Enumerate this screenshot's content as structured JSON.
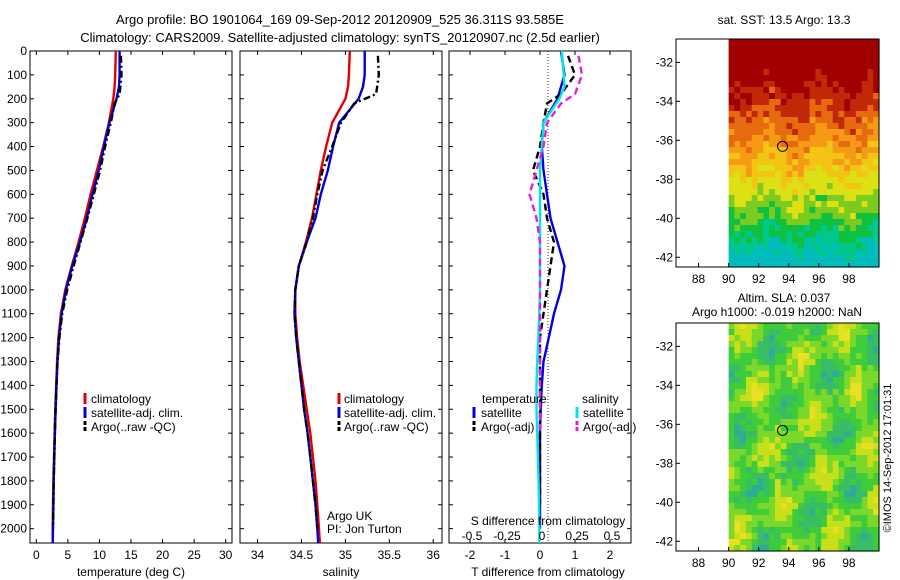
{
  "header": {
    "line1": "Argo profile: BO 1901064_169 09-Sep-2012 20120909_525 36.311S 93.585E",
    "line2": "Climatology: CARS2009. Satellite-adjusted climatology: synTS_20120907.nc (2.5d earlier)"
  },
  "colors": {
    "climatology": "#e00000",
    "satellite": "#0000dd",
    "argo": "#000000",
    "salinity_satellite": "#00e5e5",
    "salinity_argo": "#e020e0"
  },
  "chart_data": [
    {
      "type": "line",
      "xlabel": "temperature (deg C)",
      "ylabel": "",
      "xlim": [
        -1,
        31
      ],
      "xticks": [
        0,
        5,
        10,
        15,
        20,
        25,
        30
      ],
      "ylim": [
        2060,
        0
      ],
      "yticks": [
        0,
        100,
        200,
        300,
        400,
        500,
        600,
        700,
        800,
        900,
        1000,
        1100,
        1200,
        1300,
        1400,
        1500,
        1600,
        1700,
        1800,
        1900,
        2000
      ],
      "y_reversed": true,
      "legend": {
        "placement": "lower-right",
        "entries": [
          "climatology",
          "satellite-adj. clim.",
          "Argo(..raw -QC)"
        ]
      },
      "series": [
        {
          "name": "climatology",
          "color": "#e00000",
          "dash": "solid",
          "x": [
            12.6,
            12.5,
            12.4,
            12.2,
            11.5,
            10.6,
            9.6,
            8.6,
            7.7,
            6.7,
            5.6,
            4.6,
            3.9,
            3.5,
            3.3,
            3.15,
            3.0,
            2.9,
            2.8,
            2.7,
            2.65,
            2.6,
            2.6
          ],
          "y": [
            0,
            100,
            150,
            200,
            300,
            400,
            500,
            600,
            700,
            800,
            900,
            1000,
            1100,
            1200,
            1300,
            1400,
            1500,
            1600,
            1700,
            1800,
            1900,
            2000,
            2060
          ]
        },
        {
          "name": "satellite-adj. clim.",
          "color": "#0000dd",
          "dash": "solid",
          "x": [
            13.2,
            13.2,
            13.1,
            12.7,
            11.6,
            10.7,
            9.9,
            8.9,
            8.0,
            6.9,
            5.7,
            4.7,
            4.0,
            3.6,
            3.35,
            3.2,
            3.05,
            2.95,
            2.85,
            2.75,
            2.7,
            2.65,
            2.6
          ],
          "y": [
            0,
            100,
            150,
            200,
            300,
            400,
            500,
            600,
            700,
            800,
            900,
            1000,
            1100,
            1200,
            1300,
            1400,
            1500,
            1600,
            1700,
            1800,
            1900,
            2000,
            2060
          ]
        },
        {
          "name": "Argo(..raw -QC)",
          "color": "#000000",
          "dash": "dashdot",
          "x": [
            13.4,
            13.5,
            13.2,
            12.4,
            11.8,
            10.9,
            10.1,
            9.1,
            8.1,
            7.0,
            5.9,
            4.9,
            4.1,
            3.65,
            3.35,
            3.2,
            3.05,
            2.95,
            2.85,
            2.75,
            2.7,
            2.65
          ],
          "y": [
            20,
            100,
            180,
            220,
            300,
            400,
            500,
            600,
            700,
            800,
            900,
            1000,
            1100,
            1200,
            1300,
            1400,
            1500,
            1600,
            1700,
            1800,
            1900,
            2000
          ]
        }
      ]
    },
    {
      "type": "line",
      "xlabel": "salinity",
      "ylabel": "",
      "xlim": [
        33.8,
        36.1
      ],
      "xticks": [
        34,
        34.5,
        35,
        35.5,
        36
      ],
      "ylim": [
        2060,
        0
      ],
      "y_reversed": true,
      "legend": {
        "placement": "lower-right",
        "entries": [
          "climatology",
          "satellite-adj. clim.",
          "Argo(..raw -QC)"
        ]
      },
      "annotation": [
        "Argo UK",
        "PI: Jon Turton"
      ],
      "series": [
        {
          "name": "climatology",
          "color": "#e00000",
          "dash": "solid",
          "x": [
            35.05,
            35.04,
            35.03,
            35.0,
            34.85,
            34.78,
            34.72,
            34.67,
            34.62,
            34.55,
            34.47,
            34.43,
            34.43,
            34.45,
            34.48,
            34.52,
            34.56,
            34.6,
            34.63,
            34.66,
            34.68,
            34.7,
            34.71
          ],
          "y": [
            0,
            100,
            150,
            200,
            300,
            400,
            500,
            600,
            700,
            800,
            900,
            1000,
            1100,
            1200,
            1300,
            1400,
            1500,
            1600,
            1700,
            1800,
            1900,
            2000,
            2060
          ]
        },
        {
          "name": "satellite-adj. clim.",
          "color": "#0000dd",
          "dash": "solid",
          "x": [
            35.22,
            35.22,
            35.2,
            35.15,
            34.93,
            34.86,
            34.8,
            34.72,
            34.66,
            34.56,
            34.47,
            34.43,
            34.42,
            34.44,
            34.47,
            34.5,
            34.53,
            34.57,
            34.6,
            34.63,
            34.66,
            34.68,
            34.69
          ],
          "y": [
            0,
            100,
            150,
            200,
            300,
            400,
            500,
            600,
            700,
            800,
            900,
            1000,
            1100,
            1200,
            1300,
            1400,
            1500,
            1600,
            1700,
            1800,
            1900,
            2000,
            2060
          ]
        },
        {
          "name": "Argo(..raw -QC)",
          "color": "#000000",
          "dash": "dashdot",
          "x": [
            35.37,
            35.38,
            35.35,
            35.1,
            34.95,
            34.85,
            34.74,
            34.68,
            34.63,
            34.56,
            34.47,
            34.43,
            34.42,
            34.44,
            34.47,
            34.5,
            34.53,
            34.57,
            34.6,
            34.63,
            34.66,
            34.68
          ],
          "y": [
            20,
            100,
            180,
            220,
            300,
            400,
            500,
            600,
            700,
            800,
            900,
            1000,
            1100,
            1200,
            1300,
            1400,
            1500,
            1600,
            1700,
            1800,
            1900,
            2000
          ]
        }
      ]
    },
    {
      "type": "line",
      "xlabel": "T difference from climatology",
      "xlabel_top": "S difference from climatology",
      "xlim": [
        -2.6,
        2.6
      ],
      "xticks": [
        -2,
        -1,
        0,
        1,
        2
      ],
      "s_tick_labels": [
        "-0.5",
        "-0.25",
        "0",
        "0.25",
        "0.5"
      ],
      "ylim": [
        2060,
        0
      ],
      "y_reversed": true,
      "legend": {
        "placement": "lower-center",
        "entries": [
          "temperature",
          "satellite",
          "Argo(-adj)",
          "salinity",
          "satellite",
          "Argo(-adj)"
        ]
      },
      "series": [
        {
          "name": "satellite",
          "group": "temperature",
          "color": "#0000dd",
          "dash": "solid",
          "x": [
            0.6,
            0.7,
            0.6,
            0.5,
            0.1,
            0.05,
            0.1,
            0.2,
            0.3,
            0.5,
            0.7,
            0.6,
            0.4,
            0.25,
            0.1,
            0.05,
            0.02,
            0.0,
            0.0,
            0.0,
            0.0,
            0.0
          ],
          "y": [
            0,
            100,
            150,
            200,
            300,
            400,
            500,
            600,
            700,
            800,
            900,
            1000,
            1100,
            1200,
            1300,
            1400,
            1500,
            1600,
            1700,
            1800,
            1900,
            2000
          ]
        },
        {
          "name": "Argo(-adj)",
          "group": "temperature",
          "color": "#000000",
          "dash": "dashed",
          "x": [
            0.8,
            1.0,
            0.6,
            0.2,
            0.1,
            0.0,
            -0.2,
            0.1,
            0.2,
            0.4,
            0.3,
            0.2,
            0.1,
            0.0,
            0.0,
            0.0,
            0.0,
            0.0,
            0.0,
            0.0,
            0.0
          ],
          "y": [
            20,
            100,
            180,
            220,
            300,
            400,
            500,
            600,
            700,
            800,
            900,
            1000,
            1100,
            1200,
            1300,
            1400,
            1500,
            1600,
            1700,
            1800,
            1900
          ]
        },
        {
          "name": "satellite",
          "group": "salinity",
          "color": "#00e5e5",
          "dash": "solid",
          "x": [
            0.62,
            0.68,
            0.7,
            0.55,
            0.1,
            0.05,
            0.0,
            0.0,
            0.0,
            0.0,
            0.0,
            0.0,
            -0.02,
            -0.05,
            -0.08,
            -0.1,
            -0.1,
            -0.08,
            -0.06,
            -0.04,
            -0.03,
            -0.02,
            -0.02
          ],
          "y": [
            0,
            100,
            150,
            200,
            300,
            400,
            500,
            600,
            700,
            800,
            900,
            1000,
            1100,
            1200,
            1300,
            1400,
            1500,
            1600,
            1700,
            1800,
            1900,
            2000,
            2060
          ]
        },
        {
          "name": "Argo(-adj)",
          "group": "salinity",
          "color": "#e020e0",
          "dash": "dashed",
          "x": [
            1.1,
            1.2,
            1.0,
            0.6,
            0.2,
            0.1,
            -0.1,
            -0.3,
            -0.1,
            0.0,
            0.0,
            0.0,
            0.0,
            0.0,
            0.0,
            0.0,
            0.0,
            0.0
          ],
          "y": [
            20,
            100,
            180,
            220,
            300,
            400,
            500,
            600,
            700,
            800,
            900,
            1000,
            1100,
            1200,
            1300,
            1400,
            1500,
            1600
          ]
        }
      ]
    },
    {
      "type": "heatmap",
      "title": "sat. SST: 13.5 Argo: 13.3",
      "xlim": [
        86.5,
        100
      ],
      "xticks": [
        88,
        90,
        92,
        94,
        96,
        98
      ],
      "ylim": [
        -42.5,
        -30.8
      ],
      "yticks": [
        -32,
        -34,
        -36,
        -38,
        -40,
        -42
      ],
      "nodata_below_lon": 90,
      "marker": {
        "lon": 93.585,
        "lat": -36.311
      }
    },
    {
      "type": "heatmap",
      "title": "Altim. SLA: 0.037",
      "subtitle": "Argo h1000: -0.019 h2000: NaN",
      "xlim": [
        86.5,
        100
      ],
      "xticks": [
        88,
        90,
        92,
        94,
        96,
        98
      ],
      "ylim": [
        -42.5,
        -30.8
      ],
      "yticks": [
        -32,
        -34,
        -36,
        -38,
        -40,
        -42
      ],
      "nodata_below_lon": 90,
      "marker": {
        "lon": 93.585,
        "lat": -36.311
      }
    }
  ],
  "footer_stamp": "©IMOS 14-Sep-2012 17:01:31"
}
